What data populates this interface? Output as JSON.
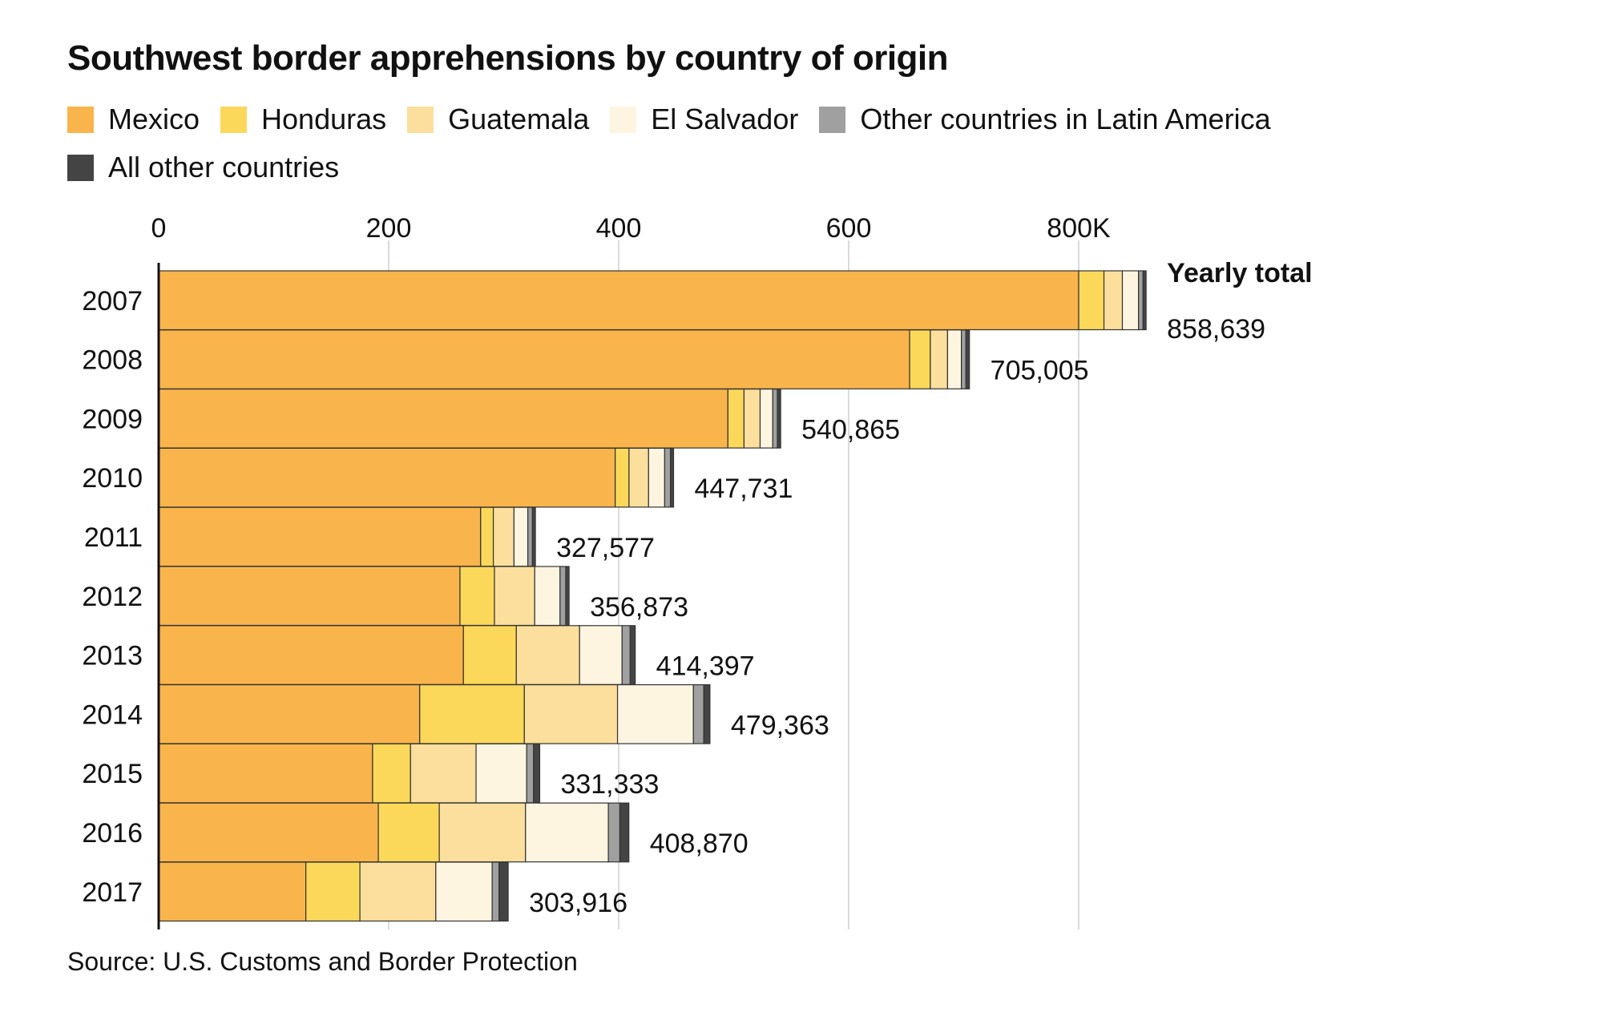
{
  "title": "Southwest border apprehensions by country of origin",
  "source": "Source: U.S. Customs and Border Protection",
  "total_header": "Yearly total",
  "legend": [
    {
      "label": "Mexico",
      "color": "#F9B44C"
    },
    {
      "label": "Honduras",
      "color": "#FBD85A"
    },
    {
      "label": "Guatemala",
      "color": "#FCDF9C"
    },
    {
      "label": "El Salvador",
      "color": "#FEF5E1"
    },
    {
      "label": "Other countries in Latin America",
      "color": "#A0A0A0"
    },
    {
      "label": "All other countries",
      "color": "#444444"
    }
  ],
  "chart_data": {
    "type": "bar",
    "orientation": "horizontal",
    "stacked": true,
    "title": "Southwest border apprehensions by country of origin",
    "categories": [
      "2007",
      "2008",
      "2009",
      "2010",
      "2011",
      "2012",
      "2013",
      "2014",
      "2015",
      "2016",
      "2017"
    ],
    "xlim": [
      0,
      880000
    ],
    "x_ticks": [
      0,
      200000,
      400000,
      600000,
      800000
    ],
    "x_tick_labels": [
      "0",
      "200",
      "400",
      "600",
      "800K"
    ],
    "grid": true,
    "legend_position": "top",
    "series": [
      {
        "name": "Mexico",
        "values": [
          800000,
          653000,
          495000,
          397000,
          280000,
          262000,
          265000,
          227000,
          186000,
          191000,
          128000
        ]
      },
      {
        "name": "Honduras",
        "values": [
          22000,
          18000,
          14000,
          12000,
          11000,
          30000,
          46000,
          91000,
          33000,
          53000,
          47000
        ]
      },
      {
        "name": "Guatemala",
        "values": [
          16000,
          15000,
          14000,
          17000,
          18000,
          35000,
          55000,
          81000,
          57000,
          75000,
          66000
        ]
      },
      {
        "name": "El Salvador",
        "values": [
          14000,
          12000,
          11000,
          14000,
          12000,
          22000,
          37000,
          66000,
          44000,
          72000,
          49000
        ]
      },
      {
        "name": "Other countries in Latin America",
        "values": [
          4000,
          4000,
          4000,
          5000,
          4000,
          5000,
          7000,
          9000,
          6000,
          10000,
          6000
        ]
      },
      {
        "name": "All other countries",
        "values": [
          2639,
          3005,
          2865,
          2731,
          2577,
          2873,
          4397,
          5363,
          5333,
          7870,
          7916
        ]
      }
    ],
    "totals": [
      858639,
      705005,
      540865,
      447731,
      327577,
      356873,
      414397,
      479363,
      331333,
      408870,
      303916
    ],
    "total_labels": [
      "858,639",
      "705,005",
      "540,865",
      "447,731",
      "327,577",
      "356,873",
      "414,397",
      "479,363",
      "331,333",
      "408,870",
      "303,916"
    ]
  }
}
